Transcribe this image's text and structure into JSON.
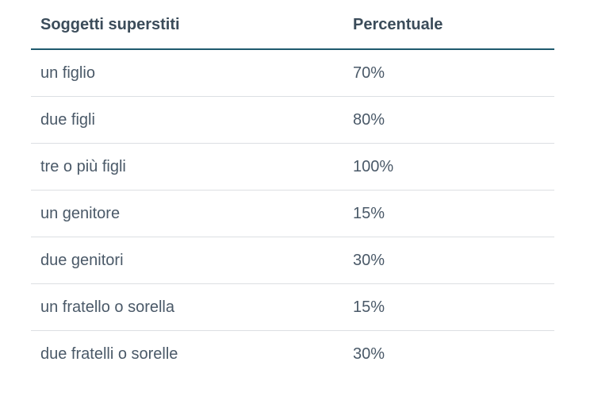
{
  "table": {
    "headers": {
      "subject": "Soggetti superstiti",
      "percentage": "Percentuale"
    },
    "rows": [
      {
        "subject": "un figlio",
        "percentage": "70%"
      },
      {
        "subject": "due figli",
        "percentage": "80%"
      },
      {
        "subject": "tre o più figli",
        "percentage": "100%"
      },
      {
        "subject": "un genitore",
        "percentage": "15%"
      },
      {
        "subject": "due genitori",
        "percentage": "30%"
      },
      {
        "subject": "un fratello o sorella",
        "percentage": "15%"
      },
      {
        "subject": "due fratelli o sorelle",
        "percentage": "30%"
      }
    ]
  }
}
